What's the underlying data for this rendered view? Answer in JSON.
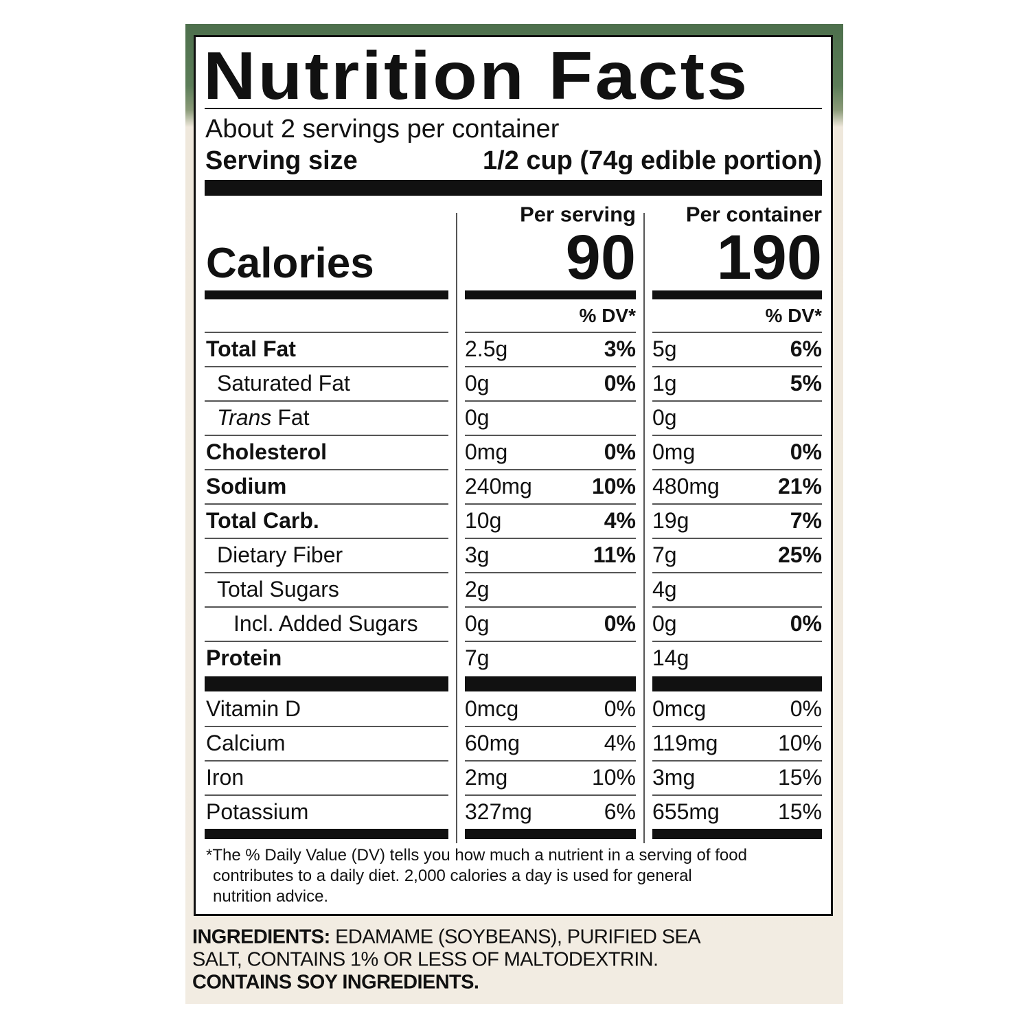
{
  "header": {
    "title": "Nutrition Facts",
    "servings": "About 2 servings per container",
    "serving_size_label": "Serving size",
    "serving_size_value": "1/2 cup (74g edible portion)"
  },
  "calories": {
    "label": "Calories",
    "columns": [
      {
        "heading": "Per serving",
        "value": "90",
        "dv_heading": "% DV*"
      },
      {
        "heading": "Per container",
        "value": "190",
        "dv_heading": "% DV*"
      }
    ]
  },
  "nutrients": [
    {
      "name": "Total Fat",
      "bold": true,
      "indent": 0,
      "values": [
        {
          "amount": "2.5g",
          "dv": "3%"
        },
        {
          "amount": "5g",
          "dv": "6%"
        }
      ]
    },
    {
      "name": "Saturated Fat",
      "bold": false,
      "indent": 1,
      "values": [
        {
          "amount": "0g",
          "dv": "0%"
        },
        {
          "amount": "1g",
          "dv": "5%"
        }
      ]
    },
    {
      "name_italic": "Trans",
      "name": "Fat",
      "bold": false,
      "indent": 1,
      "values": [
        {
          "amount": "0g"
        },
        {
          "amount": "0g"
        }
      ]
    },
    {
      "name": "Cholesterol",
      "bold": true,
      "indent": 0,
      "values": [
        {
          "amount": "0mg",
          "dv": "0%"
        },
        {
          "amount": "0mg",
          "dv": "0%"
        }
      ]
    },
    {
      "name": "Sodium",
      "bold": true,
      "indent": 0,
      "values": [
        {
          "amount": "240mg",
          "dv": "10%"
        },
        {
          "amount": "480mg",
          "dv": "21%"
        }
      ]
    },
    {
      "name": "Total Carb.",
      "bold": true,
      "indent": 0,
      "values": [
        {
          "amount": "10g",
          "dv": "4%"
        },
        {
          "amount": "19g",
          "dv": "7%"
        }
      ]
    },
    {
      "name": "Dietary Fiber",
      "bold": false,
      "indent": 1,
      "values": [
        {
          "amount": "3g",
          "dv": "11%"
        },
        {
          "amount": "7g",
          "dv": "25%"
        }
      ]
    },
    {
      "name": "Total Sugars",
      "bold": false,
      "indent": 1,
      "values": [
        {
          "amount": "2g"
        },
        {
          "amount": "4g"
        }
      ]
    },
    {
      "name": "Incl. Added Sugars",
      "bold": false,
      "indent": 2,
      "values": [
        {
          "amount": "0g",
          "dv": "0%"
        },
        {
          "amount": "0g",
          "dv": "0%"
        }
      ]
    },
    {
      "name": "Protein",
      "bold": true,
      "indent": 0,
      "values": [
        {
          "amount": "7g"
        },
        {
          "amount": "14g"
        }
      ]
    }
  ],
  "vitamins": [
    {
      "name": "Vitamin D",
      "values": [
        {
          "amount": "0mcg",
          "dv": "0%"
        },
        {
          "amount": "0mcg",
          "dv": "0%"
        }
      ]
    },
    {
      "name": "Calcium",
      "values": [
        {
          "amount": "60mg",
          "dv": "4%"
        },
        {
          "amount": "119mg",
          "dv": "10%"
        }
      ]
    },
    {
      "name": "Iron",
      "values": [
        {
          "amount": "2mg",
          "dv": "10%"
        },
        {
          "amount": "3mg",
          "dv": "15%"
        }
      ]
    },
    {
      "name": "Potassium",
      "values": [
        {
          "amount": "327mg",
          "dv": "6%"
        },
        {
          "amount": "655mg",
          "dv": "15%"
        }
      ]
    }
  ],
  "footnote": [
    "*The % Daily Value (DV) tells you how much a nutrient in a serving of food",
    "contributes to a daily diet. 2,000 calories a day is used for general",
    "nutrition advice."
  ],
  "ingredients": {
    "label": "INGREDIENTS:",
    "lines": [
      "EDAMAME (SOYBEANS), PURIFIED SEA",
      "SALT, CONTAINS 1% OR LESS OF MALTODEXTRIN."
    ],
    "allergen": "CONTAINS SOY INGREDIENTS."
  }
}
